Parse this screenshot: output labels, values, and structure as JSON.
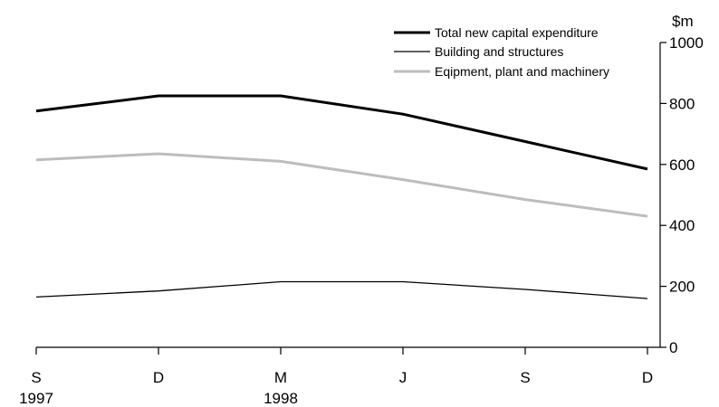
{
  "chart_data": {
    "type": "line",
    "title": "",
    "xlabel": "",
    "ylabel": "$m",
    "ylim": [
      0,
      1000
    ],
    "yticks": [
      0,
      200,
      400,
      600,
      800,
      1000
    ],
    "y_axis_position": "right",
    "grid": false,
    "legend_position": "top-right",
    "categories": [
      {
        "label": "S",
        "year": "1997"
      },
      {
        "label": "D",
        "year": ""
      },
      {
        "label": "M",
        "year": "1998"
      },
      {
        "label": "J",
        "year": ""
      },
      {
        "label": "S",
        "year": ""
      },
      {
        "label": "D",
        "year": ""
      }
    ],
    "series": [
      {
        "name": "Total new capital expenditure",
        "color": "#000000",
        "style": "thick",
        "values": [
          775,
          825,
          825,
          765,
          675,
          585
        ]
      },
      {
        "name": "Building and structures",
        "color": "#000000",
        "style": "thin",
        "values": [
          165,
          185,
          215,
          215,
          190,
          160
        ]
      },
      {
        "name": "Eqipment, plant and machinery",
        "color": "#bdbdbd",
        "style": "thick",
        "values": [
          615,
          635,
          610,
          550,
          485,
          430
        ]
      }
    ]
  }
}
